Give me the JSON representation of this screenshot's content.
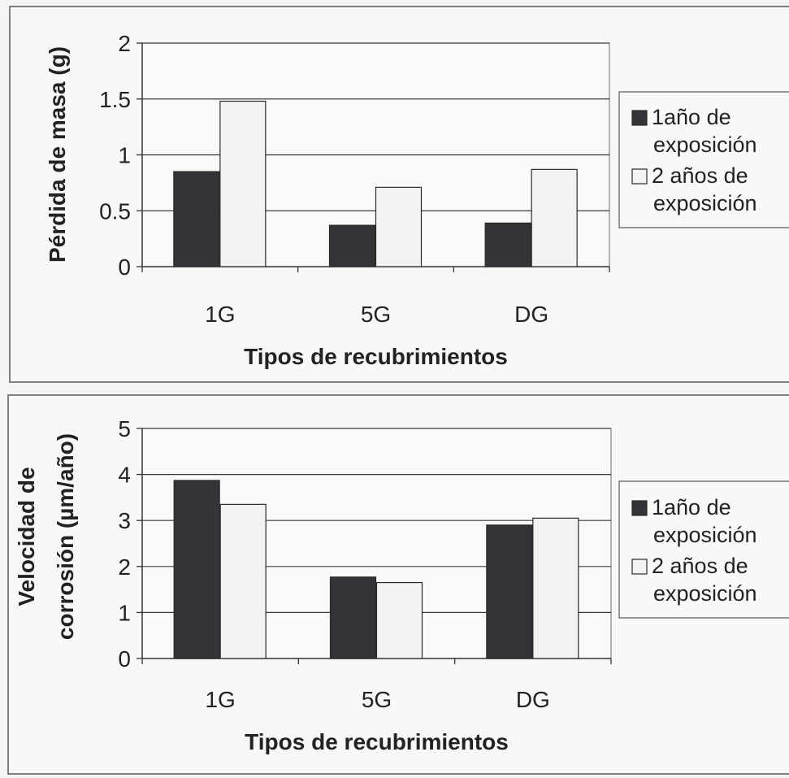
{
  "chart_data": [
    {
      "type": "bar",
      "title": "",
      "xlabel": "Tipos de recubrimientos",
      "ylabel": "Pérdida de masa (g)",
      "categories": [
        "1G",
        "5G",
        "DG"
      ],
      "ylim": [
        0,
        2
      ],
      "yticks": [
        "0",
        "0.5",
        "1",
        "1.5",
        "2"
      ],
      "grid": true,
      "legend_position": "right",
      "series": [
        {
          "name": "1año de exposición",
          "legend_lines": [
            "1año de",
            "exposición"
          ],
          "values": [
            0.85,
            0.37,
            0.39
          ],
          "color": "#333338"
        },
        {
          "name": "2 años de exposición",
          "legend_lines": [
            "2 años de",
            "exposición"
          ],
          "values": [
            1.48,
            0.71,
            0.87
          ],
          "color": "#f2f2f0"
        }
      ]
    },
    {
      "type": "bar",
      "title": "",
      "xlabel": "Tipos de recubrimientos",
      "ylabel": [
        "Velocidad de",
        "corrosión (µm/año)"
      ],
      "categories": [
        "1G",
        "5G",
        "DG"
      ],
      "ylim": [
        0,
        5
      ],
      "yticks": [
        "0",
        "1",
        "2",
        "3",
        "4",
        "5"
      ],
      "grid": true,
      "legend_position": "right",
      "series": [
        {
          "name": "1año de exposición",
          "legend_lines": [
            "1año de",
            "exposición"
          ],
          "values": [
            3.87,
            1.77,
            2.9
          ],
          "color": "#333338"
        },
        {
          "name": "2 años de exposición",
          "legend_lines": [
            "2 años de",
            "exposición"
          ],
          "values": [
            3.35,
            1.65,
            3.05
          ],
          "color": "#f2f2f0"
        }
      ]
    }
  ]
}
